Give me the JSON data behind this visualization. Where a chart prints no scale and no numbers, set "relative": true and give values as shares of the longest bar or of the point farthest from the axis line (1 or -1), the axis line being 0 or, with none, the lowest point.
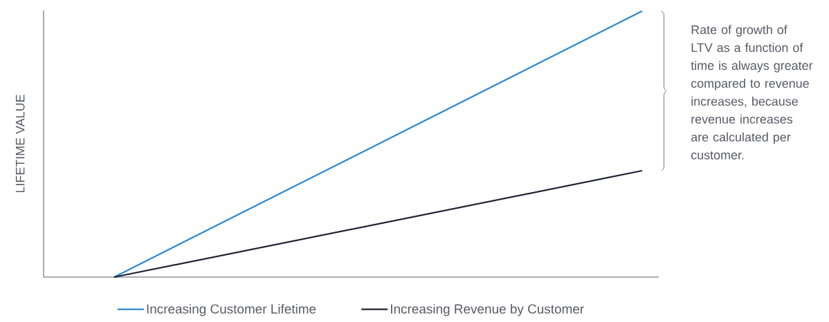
{
  "chart_data": {
    "type": "line",
    "relative": true,
    "ylabel": "LIFETIME VALUE",
    "categories": [
      null,
      null
    ],
    "series": [
      {
        "name": "Increasing Customer Lifetime",
        "color": "#2b87d1",
        "values": [
          0,
          1
        ]
      },
      {
        "name": "Increasing Revenue by Customer",
        "color": "#1f2233",
        "values": [
          0,
          0.4
        ]
      }
    ],
    "annotations": [
      "Rate of growth of LTV as a function of time is always greater compared to revenue increases, because revenue increases are calculated per customer."
    ],
    "legend": "bottom"
  }
}
